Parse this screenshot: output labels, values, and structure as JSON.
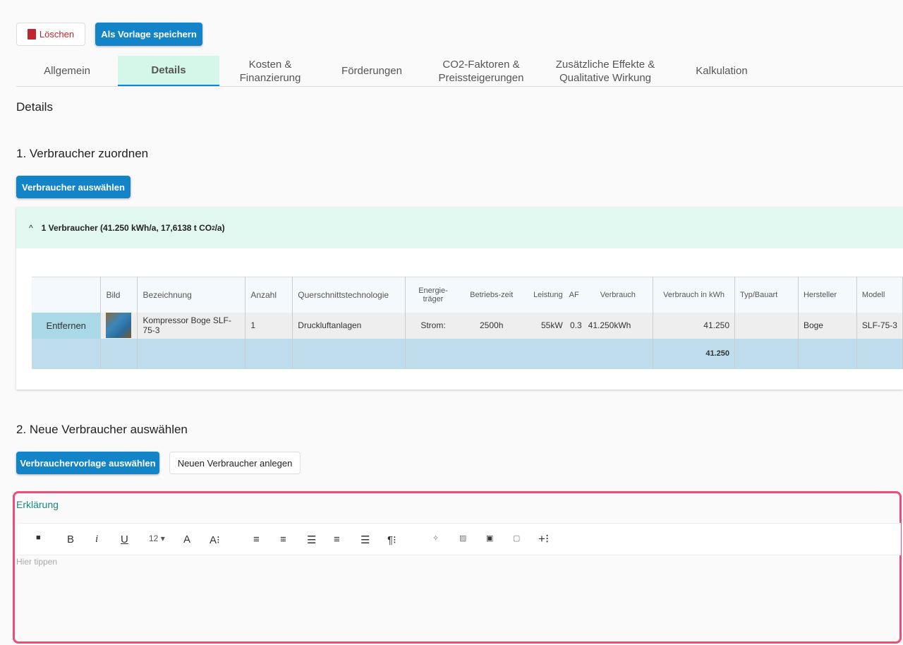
{
  "toolbar": {
    "delete_label": "Löschen",
    "save_template_label": "Als Vorlage speichern"
  },
  "tabs": [
    {
      "label": "Allgemein"
    },
    {
      "label": "Details"
    },
    {
      "label": "Kosten & Finanzierung"
    },
    {
      "label": "Förderungen"
    },
    {
      "label": "CO2-Faktoren & Preissteigerungen"
    },
    {
      "label": "Zusätzliche Effekte & Qualitative Wirkung"
    },
    {
      "label": "Kalkulation"
    }
  ],
  "page_title": "Details",
  "section1": {
    "title": "1. Verbraucher zuordnen",
    "button": "Verbraucher auswählen",
    "summary_prefix": "1 Verbraucher (41.250 kWh/a, 17,6138 t CO",
    "summary_sub": "2",
    "summary_suffix": "/a)"
  },
  "table": {
    "headers": [
      "",
      "Bild",
      "Bezeichnung",
      "Anzahl",
      "Querschnittstechnologie",
      "Energie-träger",
      "Betriebs-zeit",
      "Leistung",
      "AF",
      "Verbrauch",
      "Verbrauch in kWh",
      "Typ/Bauart",
      "Hersteller",
      "Modell"
    ],
    "row": {
      "action": "Entfernen",
      "bezeichnung": "Kompressor Boge SLF-75-3",
      "anzahl": "1",
      "technologie": "Druckluftanlagen",
      "energietraeger": "Strom:",
      "betriebszeit": "2500h",
      "leistung": "55kW",
      "af": "0.3",
      "verbrauch": "41.250kWh",
      "verbrauch_kwh": "41.250",
      "typ": "",
      "hersteller": "Boge",
      "modell": "SLF-75-3"
    },
    "total": "41.250"
  },
  "section2": {
    "title": "2. Neue Verbraucher auswählen",
    "template_button": "Verbrauchervorlage auswählen",
    "new_button": "Neuen Verbraucher anlegen"
  },
  "editor": {
    "label": "Erklärung",
    "font_size": "12",
    "placeholder": "Hier tippen"
  },
  "colors": {
    "primary": "#1484c8",
    "active_tab": "#d4f7ea",
    "focus_border": "#e8507a",
    "label": "#168a80"
  }
}
